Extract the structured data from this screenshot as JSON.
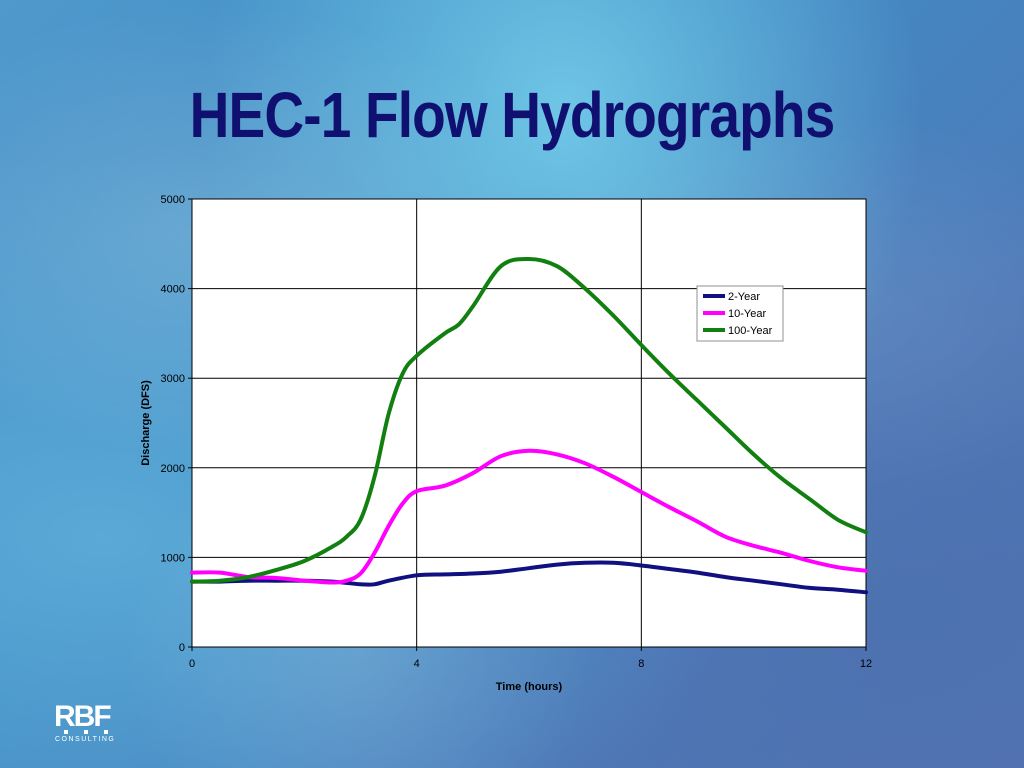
{
  "slide": {
    "title": "HEC-1 Flow Hydrographs"
  },
  "logo": {
    "text": "RBF",
    "subtext": "CONSULTING"
  },
  "chart_data": {
    "type": "line",
    "title": "",
    "xlabel": "Time (hours)",
    "ylabel": "Discharge (DFS)",
    "xlim": [
      0,
      12
    ],
    "ylim": [
      0,
      5000
    ],
    "xticks": [
      0,
      4,
      8,
      12
    ],
    "yticks": [
      0,
      1000,
      2000,
      3000,
      4000,
      5000
    ],
    "grid": true,
    "legend_position": "top-right",
    "series": [
      {
        "name": "2-Year",
        "color": "#101080",
        "x": [
          0,
          0.5,
          1,
          1.5,
          2,
          2.5,
          3,
          3.25,
          3.5,
          4,
          4.5,
          5,
          5.5,
          6,
          6.5,
          7,
          7.5,
          8,
          8.5,
          9,
          9.5,
          10,
          10.5,
          11,
          11.5,
          12
        ],
        "y": [
          730,
          730,
          740,
          740,
          740,
          730,
          700,
          700,
          740,
          800,
          810,
          820,
          840,
          880,
          920,
          940,
          940,
          910,
          870,
          830,
          780,
          740,
          700,
          660,
          640,
          610
        ]
      },
      {
        "name": "10-Year",
        "color": "#ff00ff",
        "x": [
          0,
          0.5,
          1,
          1.5,
          2,
          2.5,
          2.75,
          3,
          3.25,
          3.5,
          3.75,
          4,
          4.5,
          5,
          5.5,
          6,
          6.5,
          7,
          7.5,
          8,
          8.5,
          9,
          9.5,
          10,
          10.5,
          11,
          11.5,
          12
        ],
        "y": [
          830,
          830,
          780,
          770,
          740,
          720,
          740,
          820,
          1050,
          1350,
          1600,
          1740,
          1800,
          1940,
          2130,
          2190,
          2150,
          2050,
          1900,
          1730,
          1560,
          1400,
          1230,
          1130,
          1050,
          960,
          890,
          850
        ]
      },
      {
        "name": "100-Year",
        "color": "#118011",
        "x": [
          0,
          0.5,
          1,
          1.5,
          2,
          2.5,
          2.75,
          3,
          3.25,
          3.5,
          3.75,
          4,
          4.5,
          4.75,
          5,
          5.5,
          6,
          6.5,
          7,
          7.5,
          8,
          8.5,
          9,
          9.5,
          10,
          10.5,
          11,
          11.5,
          12
        ],
        "y": [
          730,
          740,
          780,
          860,
          960,
          1120,
          1230,
          1420,
          1900,
          2600,
          3050,
          3250,
          3500,
          3600,
          3800,
          4250,
          4330,
          4250,
          4000,
          3700,
          3370,
          3050,
          2750,
          2450,
          2150,
          1880,
          1650,
          1420,
          1280
        ]
      }
    ]
  }
}
